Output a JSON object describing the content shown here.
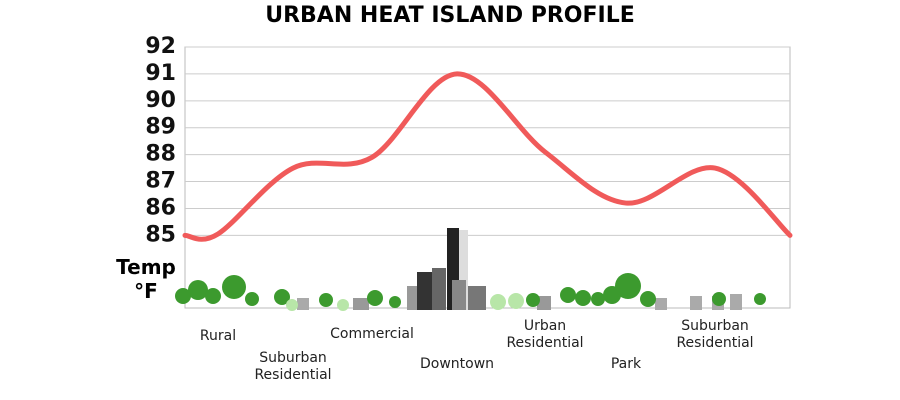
{
  "chart_data": {
    "type": "line",
    "title": "URBAN HEAT ISLAND PROFILE",
    "y_label": "Temp °F",
    "categories": [
      null,
      "Rural",
      "Suburban Residential",
      "Commercial",
      "Downtown",
      "Urban Residential",
      "Park",
      "Suburban Residential",
      null
    ],
    "values": [
      85,
      85.05,
      87.5,
      87.9,
      91,
      88.1,
      86.2,
      87.5,
      85
    ],
    "color": "#f05a5a",
    "ylim": [
      82.3,
      92
    ],
    "yticks": [
      85,
      86,
      87,
      88,
      89,
      90,
      91,
      92
    ],
    "grid": true
  }
}
